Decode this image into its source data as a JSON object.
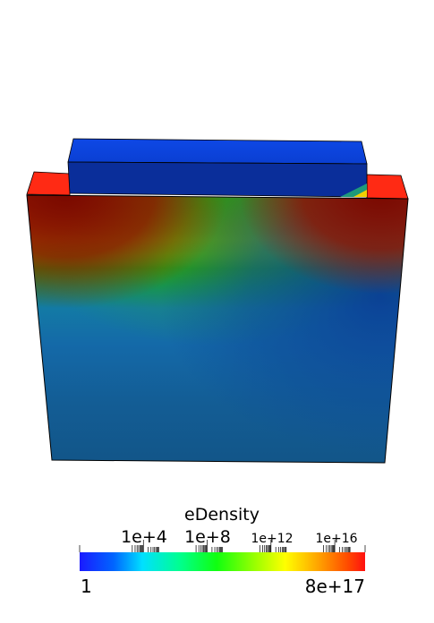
{
  "scalar_bar": {
    "title": "eDensity",
    "range_min_label": "1",
    "range_max_label": "8e+17",
    "major_ticks": [
      "1e+4",
      "1e+8",
      "1e+12",
      "1e+16"
    ]
  },
  "colors": {
    "top_block": "#0a3fd6",
    "left_pad": "#ff2a14",
    "right_pad": "#ff2a14",
    "edge_line": "#000000",
    "background": "#ffffff"
  }
}
